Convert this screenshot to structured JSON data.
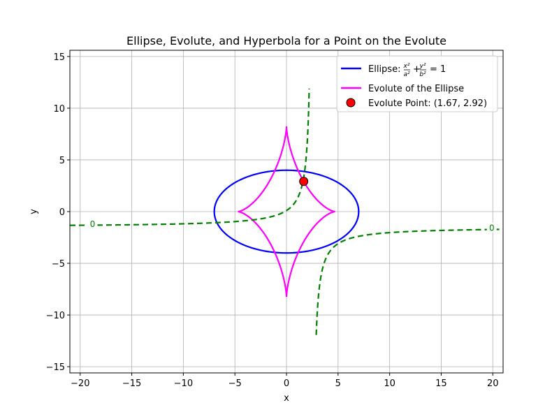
{
  "chart_data": {
    "type": "line",
    "title": "Ellipse, Evolute, and Hyperbola for a Point on the Evolute",
    "xlabel": "x",
    "ylabel": "y",
    "xlim": [
      -21,
      21
    ],
    "ylim": [
      -15.6,
      15.6
    ],
    "xticks": [
      -20,
      -15,
      -10,
      -5,
      0,
      5,
      10,
      15,
      20
    ],
    "yticks": [
      -15,
      -10,
      -5,
      0,
      5,
      10,
      15
    ],
    "xtick_labels": [
      "−20",
      "−15",
      "−10",
      "−5",
      "0",
      "5",
      "10",
      "15",
      "20"
    ],
    "ytick_labels": [
      "−15",
      "−10",
      "−5",
      "0",
      "5",
      "10",
      "15"
    ],
    "grid": true,
    "legend_position": "top-right",
    "ellipse": {
      "a": 7,
      "b": 4,
      "color": "#0000ff"
    },
    "evolute": {
      "x_cusp": 4.714,
      "y_cusp": 8.25,
      "color": "#ff00ff"
    },
    "hyperbola": {
      "x_asymptote": 2.5,
      "y_asymptote": -1.5,
      "k": 4.0,
      "color": "#008000",
      "x_range": [
        -21,
        21
      ],
      "y_range": [
        -12,
        12
      ]
    },
    "point": {
      "x": 1.67,
      "y": 2.92,
      "color": "#ff0000"
    },
    "contour_labels": [
      {
        "text": "0",
        "x": -18.8,
        "y": -1.2
      },
      {
        "text": "0",
        "x": 19.9,
        "y": -1.6
      }
    ],
    "legend": {
      "ellipse_prefix": "Ellipse: ",
      "ellipse_eq": {
        "x_num": "x²",
        "x_den": "a²",
        "plus": "+",
        "y_num": "y²",
        "y_den": "b²",
        "rhs": "= 1"
      },
      "evolute_label": "Evolute of the Ellipse",
      "point_label": "Evolute Point: (1.67, 2.92)"
    }
  }
}
